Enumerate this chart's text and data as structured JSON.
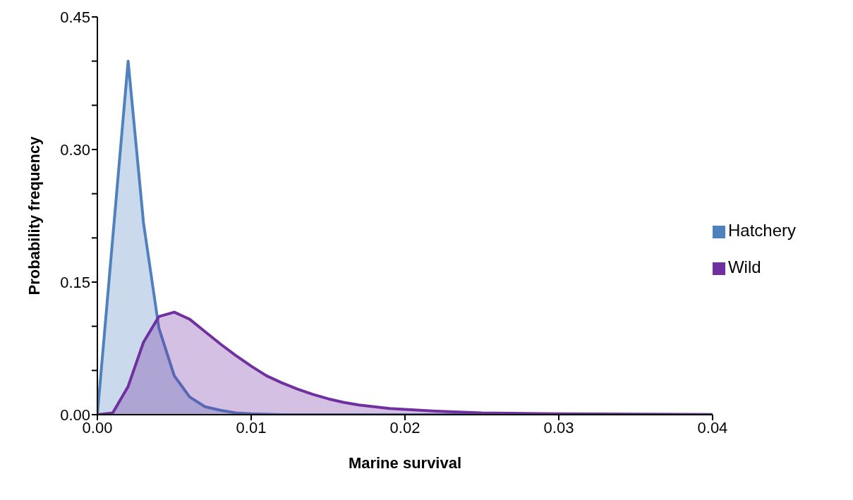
{
  "chart_data": {
    "type": "area",
    "xlabel": "Marine survival",
    "ylabel": "Probability frequency",
    "xlim": [
      0,
      0.04
    ],
    "xticks": [
      {
        "value": 0,
        "label": "0.00"
      },
      0.01,
      0.02,
      0.03,
      0.04
    ],
    "ylim": [
      0,
      0.45
    ],
    "yticks": [
      {
        "value": 0,
        "label": "0.00"
      },
      {
        "value": 0.05,
        "label": null
      },
      {
        "value": 0.1,
        "label": null
      },
      0.15,
      {
        "value": 0.2,
        "label": null
      },
      {
        "value": 0.25,
        "label": null
      },
      {
        "value": 0.3,
        "label": "0.30"
      },
      {
        "value": 0.35,
        "label": null
      },
      {
        "value": 0.4,
        "label": null
      },
      0.45
    ],
    "grid": false,
    "legend": "right",
    "marker": "none",
    "line_style": "solid",
    "series": [
      {
        "name": "Hatchery",
        "color": "#4f81bd",
        "x": [
          0,
          0.001,
          0.002,
          0.003,
          0.004,
          0.005,
          0.006,
          0.007,
          0.008,
          0.009,
          0.01,
          0.012,
          0.015,
          0.02,
          0.03,
          0.04
        ],
        "values": [
          0,
          0.2,
          0.4,
          0.217,
          0.098,
          0.044,
          0.02,
          0.009,
          0.005,
          0.002,
          0.001,
          0,
          0,
          0,
          0,
          0
        ]
      },
      {
        "name": "Wild",
        "color": "#7030a0",
        "x": [
          0,
          0.001,
          0.002,
          0.003,
          0.004,
          0.005,
          0.006,
          0.007,
          0.008,
          0.009,
          0.01,
          0.011,
          0.012,
          0.013,
          0.014,
          0.015,
          0.016,
          0.017,
          0.018,
          0.019,
          0.02,
          0.022,
          0.025,
          0.03,
          0.035,
          0.04
        ],
        "values": [
          0,
          0.002,
          0.032,
          0.082,
          0.111,
          0.116,
          0.108,
          0.094,
          0.08,
          0.067,
          0.055,
          0.044,
          0.036,
          0.029,
          0.023,
          0.018,
          0.014,
          0.011,
          0.009,
          0.007,
          0.006,
          0.004,
          0.002,
          0.001,
          0.0005,
          0.0002
        ]
      }
    ]
  }
}
